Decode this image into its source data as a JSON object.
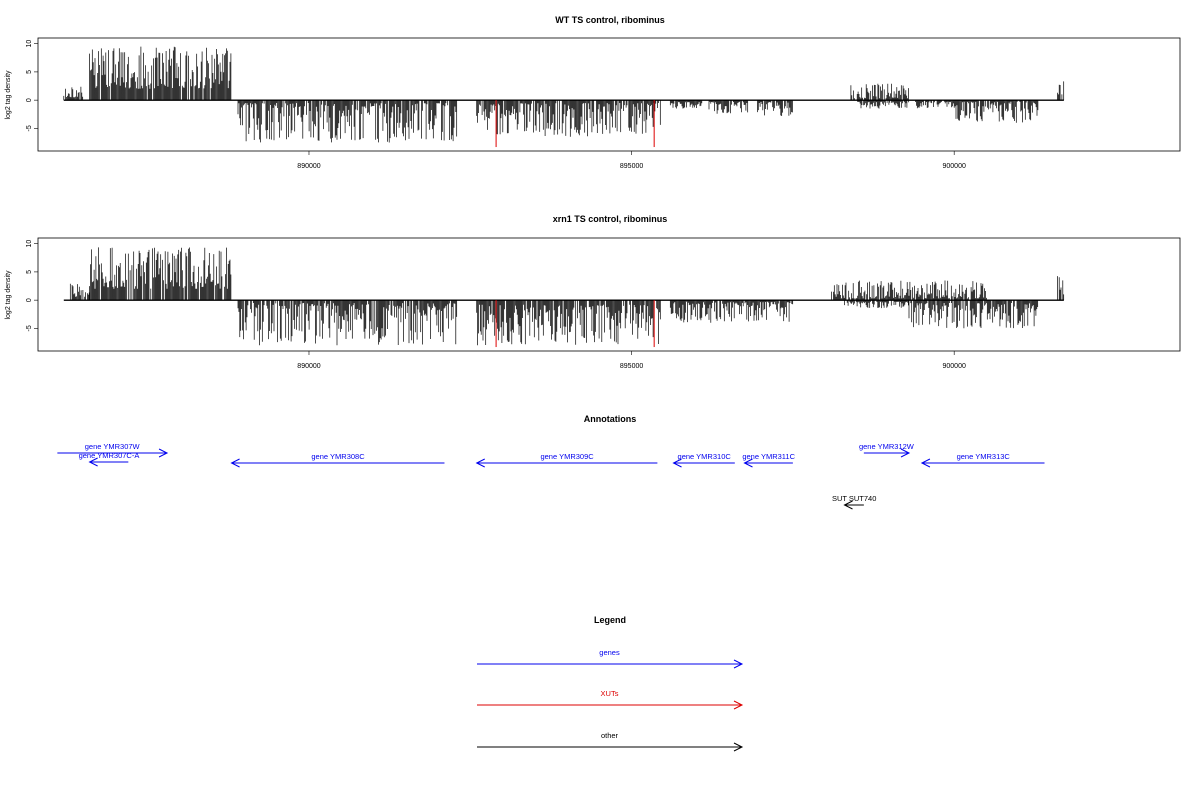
{
  "chart_data": [
    {
      "type": "bar",
      "title": "WT TS control, ribominus",
      "ylabel": "log2 tag density",
      "ylim": [
        -9,
        11
      ],
      "yticks": [
        "-5",
        "0",
        "5",
        "10"
      ],
      "xlim": [
        885800,
        903500
      ],
      "xticks": [
        {
          "value": 890000,
          "label": "890000"
        },
        {
          "value": 895000,
          "label": "895000"
        },
        {
          "value": 900000,
          "label": "900000"
        }
      ],
      "baseline": {
        "from": 886200,
        "to": 901700
      },
      "colors": {
        "density": "#000000",
        "marker": "#dd0000"
      },
      "segments": [
        {
          "start": 886200,
          "end": 886500,
          "min": 0.5,
          "max": 2.5,
          "dir": 1,
          "seed": 11
        },
        {
          "start": 886600,
          "end": 888800,
          "min": 2,
          "max": 9.5,
          "dir": 1,
          "seed": 12
        },
        {
          "start": 888900,
          "end": 892300,
          "min": 0.5,
          "max": 7.5,
          "dir": -1,
          "seed": 13
        },
        {
          "start": 892600,
          "end": 895450,
          "min": 0.5,
          "max": 6.5,
          "dir": -1,
          "seed": 14
        },
        {
          "start": 895600,
          "end": 896100,
          "min": 0.3,
          "max": 1.5,
          "dir": -1,
          "seed": 15
        },
        {
          "start": 896200,
          "end": 896800,
          "min": 0.3,
          "max": 2.5,
          "dir": -1,
          "seed": 16
        },
        {
          "start": 896950,
          "end": 897500,
          "min": 0.3,
          "max": 2.8,
          "dir": -1,
          "seed": 17
        },
        {
          "start": 898400,
          "end": 899300,
          "min": 0.3,
          "max": 3,
          "dir": 1,
          "seed": 18
        },
        {
          "start": 898500,
          "end": 899300,
          "min": 0.3,
          "max": 1.5,
          "dir": -1,
          "seed": 19
        },
        {
          "start": 899400,
          "end": 900000,
          "min": 0.3,
          "max": 1.5,
          "dir": -1,
          "seed": 20
        },
        {
          "start": 900000,
          "end": 901300,
          "min": 0.3,
          "max": 4,
          "dir": -1,
          "seed": 21
        },
        {
          "start": 901600,
          "end": 901700,
          "min": 1,
          "max": 3.5,
          "dir": 1,
          "seed": 22
        }
      ],
      "markers": [
        892900,
        895350
      ]
    },
    {
      "type": "bar",
      "title": "xrn1 TS control, ribominus",
      "ylabel": "log2 tag density",
      "ylim": [
        -9,
        11
      ],
      "yticks": [
        "-5",
        "0",
        "5",
        "10"
      ],
      "xlim": [
        885800,
        903500
      ],
      "xticks": [
        {
          "value": 890000,
          "label": "890000"
        },
        {
          "value": 895000,
          "label": "895000"
        },
        {
          "value": 900000,
          "label": "900000"
        }
      ],
      "baseline": {
        "from": 886200,
        "to": 901700
      },
      "colors": {
        "density": "#000000",
        "marker": "#dd0000"
      },
      "segments": [
        {
          "start": 886300,
          "end": 886600,
          "min": 0.5,
          "max": 3,
          "dir": 1,
          "seed": 31
        },
        {
          "start": 886600,
          "end": 888800,
          "min": 2,
          "max": 9.5,
          "dir": 1,
          "seed": 32
        },
        {
          "start": 888900,
          "end": 892300,
          "min": 0.5,
          "max": 8,
          "dir": -1,
          "seed": 33
        },
        {
          "start": 892600,
          "end": 895450,
          "min": 0.8,
          "max": 8,
          "dir": -1,
          "seed": 34
        },
        {
          "start": 895600,
          "end": 897500,
          "min": 0.3,
          "max": 4,
          "dir": -1,
          "seed": 35
        },
        {
          "start": 898100,
          "end": 900500,
          "min": 0.3,
          "max": 3.5,
          "dir": 1,
          "seed": 36
        },
        {
          "start": 898300,
          "end": 899300,
          "min": 0.3,
          "max": 1.5,
          "dir": -1,
          "seed": 37
        },
        {
          "start": 899300,
          "end": 901300,
          "min": 0.5,
          "max": 5,
          "dir": -1,
          "seed": 38
        },
        {
          "start": 901600,
          "end": 901700,
          "min": 1,
          "max": 5.5,
          "dir": 1,
          "seed": 39
        }
      ],
      "markers": [
        892900,
        895350
      ]
    }
  ],
  "annotations": {
    "title": "Annotations",
    "features": [
      {
        "label": "gene YMR307W",
        "start": 886100,
        "end": 887800,
        "dir": 1,
        "row": 0,
        "color": "#0000ee"
      },
      {
        "label": "gene YMR307C-A",
        "start": 886600,
        "end": 887200,
        "dir": -1,
        "row": 1,
        "color": "#0000ee"
      },
      {
        "label": "gene YMR308C",
        "start": 888800,
        "end": 892100,
        "dir": -1,
        "row": 2,
        "color": "#0000ee"
      },
      {
        "label": "gene YMR309C",
        "start": 892600,
        "end": 895400,
        "dir": -1,
        "row": 2,
        "color": "#0000ee"
      },
      {
        "label": "gene YMR310C",
        "start": 895650,
        "end": 896600,
        "dir": -1,
        "row": 2,
        "color": "#0000ee"
      },
      {
        "label": "gene YMR311C",
        "start": 896750,
        "end": 897500,
        "dir": -1,
        "row": 2,
        "color": "#0000ee"
      },
      {
        "label": "gene YMR312W",
        "start": 898600,
        "end": 899300,
        "dir": 1,
        "row": 0,
        "color": "#0000ee"
      },
      {
        "label": "gene YMR313C",
        "start": 899500,
        "end": 901400,
        "dir": -1,
        "row": 2,
        "color": "#0000ee"
      },
      {
        "label": "SUT SUT740",
        "start": 898300,
        "end": 898600,
        "dir": -1,
        "row": 5,
        "color": "#000000"
      }
    ]
  },
  "legend": {
    "title": "Legend",
    "items": [
      {
        "label": "genes",
        "color": "#0000ee"
      },
      {
        "label": "XUTs",
        "color": "#dd0000"
      },
      {
        "label": "other",
        "color": "#000000"
      }
    ]
  }
}
